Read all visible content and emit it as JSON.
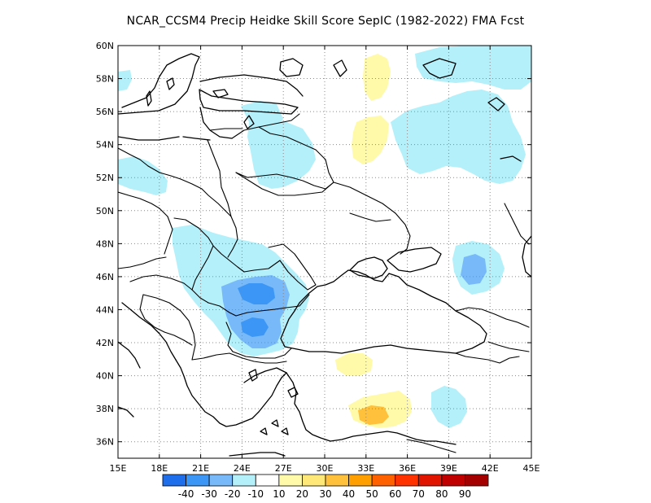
{
  "title": "NCAR_CCSM4 Precip Heidke Skill Score SepIC (1982-2022) FMA Fcst",
  "map": {
    "lon_range": [
      15,
      45
    ],
    "lat_range": [
      35,
      60
    ],
    "lat_ticks": [
      "36N",
      "38N",
      "40N",
      "42N",
      "44N",
      "46N",
      "48N",
      "50N",
      "52N",
      "54N",
      "56N",
      "58N",
      "60N"
    ],
    "lon_ticks": [
      "15E",
      "18E",
      "21E",
      "24E",
      "27E",
      "30E",
      "33E",
      "36E",
      "39E",
      "42E",
      "45E"
    ],
    "gridlines": "dotted",
    "coastlines": true,
    "country_borders": true
  },
  "colorbar": {
    "colors": [
      "#1e6eeb",
      "#3c96f5",
      "#78b9fa",
      "#b4f0fa",
      "#ffffff",
      "#fffaaa",
      "#ffe878",
      "#ffc03c",
      "#ffa000",
      "#ff6000",
      "#ff3200",
      "#e11400",
      "#c00000",
      "#a50000"
    ],
    "labels": [
      "-40",
      "-30",
      "-20",
      "-10",
      "10",
      "20",
      "30",
      "40",
      "50",
      "60",
      "70",
      "80",
      "90"
    ]
  },
  "regions": [
    {
      "name": "scandinavia-coast-light-blue",
      "level": "-10"
    },
    {
      "name": "baltic-light-blue",
      "level": "-10"
    },
    {
      "name": "belarus-light-blue",
      "level": "-10"
    },
    {
      "name": "central-russia-light-blue",
      "level": "-10"
    },
    {
      "name": "northeast-light-blue",
      "level": "-10"
    },
    {
      "name": "poland-southwest-light-blue",
      "level": "-10"
    },
    {
      "name": "hungary-romania-light-blue",
      "level": "-10"
    },
    {
      "name": "romania-bulgaria-blue",
      "level": "-20"
    },
    {
      "name": "romania-core-dark-blue",
      "level": "-30"
    },
    {
      "name": "bulgaria-core-dark-blue",
      "level": "-30"
    },
    {
      "name": "caucasus-light-blue",
      "level": "-10"
    },
    {
      "name": "caucasus-core-blue",
      "level": "-20"
    },
    {
      "name": "turkey-east-light-blue",
      "level": "-10"
    },
    {
      "name": "finland-south-yellow",
      "level": "10"
    },
    {
      "name": "belarus-east-yellow",
      "level": "10"
    },
    {
      "name": "turkey-south-yellow",
      "level": "10"
    },
    {
      "name": "turkey-south-core-orange",
      "level": "30"
    },
    {
      "name": "northern-turkey-yellow",
      "level": "10"
    }
  ]
}
